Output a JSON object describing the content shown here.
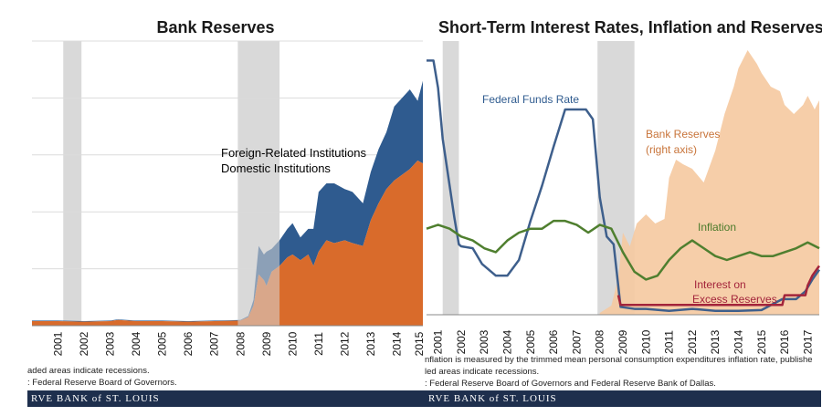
{
  "left_chart": {
    "title": "Bank Reserves",
    "legend": [
      {
        "label": "Foreign-Related  Institutions",
        "color": "#2f5b8f"
      },
      {
        "label": "Domestic Institutions",
        "color": "#d96b2b"
      }
    ],
    "notes": [
      "aded areas indicate recessions.",
      ": Federal Reserve Board of Governors."
    ],
    "footer": "RVE BANK of ST. LOUIS"
  },
  "right_chart": {
    "title": "Short-Term Interest Rates, Inflation and Reserves",
    "annotations": {
      "fed_funds": "Federal  Funds Rate",
      "reserves_line1": "Bank Reserves",
      "reserves_line2": "(right axis)",
      "inflation": "Inflation",
      "ioer_line1": "Interest on",
      "ioer_line2": "Excess Reserves"
    },
    "notes": [
      "nflation is measured by the trimmed mean personal consumption expenditures inflation rate, publishe",
      "led areas indicate recessions.",
      ": Federal Reserve Board of Governors  and Federal Reserve Bank of Dallas."
    ],
    "footer": "RVE BANK of ST. LOUIS"
  },
  "chart_data": [
    {
      "type": "area",
      "title": "Bank Reserves",
      "x_ticks": [
        "2001",
        "2002",
        "2003",
        "2004",
        "2005",
        "2006",
        "2007",
        "2008",
        "2009",
        "2010",
        "2011",
        "2012",
        "2013",
        "2014",
        "2015"
      ],
      "xlim": [
        2000.0,
        2015.0
      ],
      "ylim": [
        0,
        5
      ],
      "recessions": [
        [
          2001.2,
          2001.9
        ],
        [
          2007.9,
          2009.5
        ]
      ],
      "x": [
        2000.0,
        2001.0,
        2002.0,
        2003.0,
        2003.3,
        2004.0,
        2005.0,
        2006.0,
        2007.0,
        2008.0,
        2008.3,
        2008.5,
        2008.7,
        2008.9,
        2009.0,
        2009.2,
        2009.5,
        2009.8,
        2010.0,
        2010.3,
        2010.6,
        2010.8,
        2011.0,
        2011.3,
        2011.6,
        2012.0,
        2012.3,
        2012.7,
        2013.0,
        2013.3,
        2013.6,
        2013.9,
        2014.2,
        2014.5,
        2014.8,
        2015.0
      ],
      "series": [
        {
          "name": "Domestic Institutions",
          "values": [
            0.08,
            0.08,
            0.07,
            0.08,
            0.1,
            0.08,
            0.08,
            0.07,
            0.08,
            0.09,
            0.15,
            0.35,
            0.9,
            0.8,
            0.7,
            0.95,
            1.05,
            1.2,
            1.25,
            1.15,
            1.25,
            1.05,
            1.3,
            1.5,
            1.45,
            1.5,
            1.45,
            1.4,
            1.85,
            2.15,
            2.4,
            2.55,
            2.65,
            2.75,
            2.9,
            2.85
          ]
        },
        {
          "name": "Foreign-Related  Institutions",
          "values": [
            0.01,
            0.01,
            0.01,
            0.01,
            0.01,
            0.01,
            0.01,
            0.01,
            0.01,
            0.01,
            0.02,
            0.1,
            0.5,
            0.45,
            0.6,
            0.4,
            0.45,
            0.5,
            0.55,
            0.4,
            0.45,
            0.65,
            1.05,
            1.0,
            1.05,
            0.9,
            0.9,
            0.75,
            0.85,
            0.95,
            1.0,
            1.3,
            1.35,
            1.4,
            1.05,
            1.45
          ]
        }
      ]
    },
    {
      "type": "line",
      "title": "Short-Term Interest Rates, Inflation and Reserves",
      "x_ticks": [
        "2001",
        "2002",
        "2003",
        "2004",
        "2005",
        "2006",
        "2007",
        "2008",
        "2009",
        "2010",
        "2011",
        "2012",
        "2013",
        "2014",
        "2015",
        "2016",
        "2017"
      ],
      "xlim": [
        2000.5,
        2017.5
      ],
      "ylim_left": [
        0,
        7
      ],
      "ylim_right": [
        0,
        3000
      ],
      "recessions": [
        [
          2001.2,
          2001.9
        ],
        [
          2007.9,
          2009.5
        ]
      ],
      "series": [
        {
          "name": "Federal  Funds Rate",
          "x": [
            2000.5,
            2000.8,
            2001.0,
            2001.2,
            2001.4,
            2001.7,
            2001.9,
            2002.0,
            2002.5,
            2002.9,
            2003.0,
            2003.5,
            2004.0,
            2004.5,
            2005.0,
            2005.5,
            2006.0,
            2006.5,
            2007.0,
            2007.4,
            2007.7,
            2008.0,
            2008.3,
            2008.6,
            2008.9,
            2009.5,
            2010.0,
            2011.0,
            2012.0,
            2013.0,
            2014.0,
            2015.0,
            2015.9,
            2016.5,
            2016.9,
            2017.2,
            2017.5
          ],
          "values": [
            6.5,
            6.5,
            5.8,
            4.5,
            3.7,
            2.5,
            1.8,
            1.75,
            1.7,
            1.3,
            1.25,
            1.0,
            1.0,
            1.4,
            2.4,
            3.3,
            4.3,
            5.25,
            5.25,
            5.25,
            5.0,
            3.0,
            2.0,
            1.8,
            0.2,
            0.15,
            0.15,
            0.1,
            0.15,
            0.1,
            0.1,
            0.12,
            0.4,
            0.4,
            0.6,
            0.9,
            1.15
          ]
        },
        {
          "name": "Inflation",
          "x": [
            2000.5,
            2001.0,
            2001.5,
            2002.0,
            2002.5,
            2003.0,
            2003.5,
            2004.0,
            2004.5,
            2005.0,
            2005.5,
            2006.0,
            2006.5,
            2007.0,
            2007.5,
            2008.0,
            2008.5,
            2009.0,
            2009.5,
            2010.0,
            2010.5,
            2011.0,
            2011.5,
            2012.0,
            2012.5,
            2013.0,
            2013.5,
            2014.0,
            2014.5,
            2015.0,
            2015.5,
            2016.0,
            2016.5,
            2017.0,
            2017.5
          ],
          "values": [
            2.2,
            2.3,
            2.2,
            2.0,
            1.9,
            1.7,
            1.6,
            1.9,
            2.1,
            2.2,
            2.2,
            2.4,
            2.4,
            2.3,
            2.1,
            2.3,
            2.2,
            1.6,
            1.1,
            0.9,
            1.0,
            1.4,
            1.7,
            1.9,
            1.7,
            1.5,
            1.4,
            1.5,
            1.6,
            1.5,
            1.5,
            1.6,
            1.7,
            1.85,
            1.7
          ]
        },
        {
          "name": "Interest on Excess Reserves",
          "x": [
            2008.8,
            2008.9,
            2015.9,
            2016.0,
            2016.9,
            2017.0,
            2017.2,
            2017.5
          ],
          "values": [
            0.5,
            0.25,
            0.25,
            0.5,
            0.5,
            0.75,
            1.0,
            1.25
          ]
        },
        {
          "name": "Bank Reserves (right axis)",
          "axis": "right",
          "type": "area",
          "x": [
            2008.0,
            2008.5,
            2008.8,
            2009.0,
            2009.3,
            2009.6,
            2010.0,
            2010.4,
            2010.8,
            2011.0,
            2011.3,
            2011.6,
            2012.0,
            2012.5,
            2013.0,
            2013.4,
            2013.8,
            2014.0,
            2014.4,
            2014.8,
            2015.0,
            2015.4,
            2015.8,
            2016.0,
            2016.4,
            2016.8,
            2017.0,
            2017.3,
            2017.5
          ],
          "values": [
            20,
            100,
            400,
            900,
            750,
            1000,
            1100,
            1000,
            1050,
            1500,
            1700,
            1650,
            1600,
            1450,
            1800,
            2200,
            2500,
            2700,
            2900,
            2750,
            2650,
            2500,
            2450,
            2300,
            2200,
            2300,
            2400,
            2250,
            2350
          ]
        }
      ]
    }
  ]
}
